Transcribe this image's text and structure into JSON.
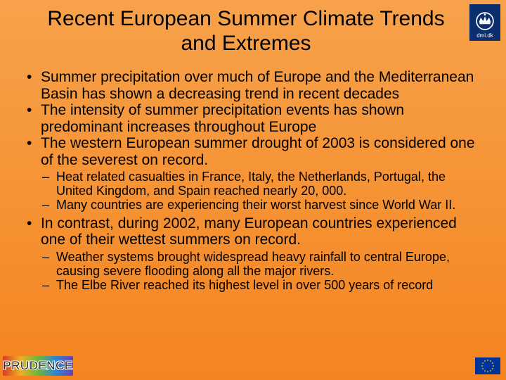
{
  "background": {
    "gradient_start": "#f7a24b",
    "gradient_end": "#f4841f",
    "direction": "to bottom"
  },
  "title": "Recent European Summer Climate Trends and Extremes",
  "title_fontsize": 30,
  "logo": {
    "box_bg": "#0b2e6f",
    "crown_color": "#ffffff",
    "label": "dmi.dk",
    "label_color": "#ffffff"
  },
  "bullets": [
    {
      "text": "Summer precipitation over much of Europe and the Mediterranean Basin has shown a decreasing trend in recent decades",
      "sub": []
    },
    {
      "text": "The intensity of summer precipitation events has shown predominant increases throughout Europe",
      "sub": []
    },
    {
      "text": "The western European summer drought of 2003 is considered one of the severest on record.",
      "sub": [
        "Heat related casualties in France, Italy, the Netherlands, Portugal, the United Kingdom, and Spain reached nearly 20, 000.",
        "Many countries are experiencing their worst harvest since World War II."
      ]
    },
    {
      "text": "In contrast, during 2002, many European countries experienced one of their wettest summers on record.",
      "sub": [
        "Weather systems brought widespread heavy rainfall to central Europe, causing severe flooding along all the major rivers.",
        "The Elbe River reached its highest level in over 500 years of record"
      ]
    }
  ],
  "body_fontsize_lvl1": 21,
  "body_fontsize_lvl2": 18,
  "prudence": {
    "text": "PRUDENCE",
    "gradient_colors": [
      "#d63c2a",
      "#f0b020",
      "#6ab83a",
      "#2b87d6",
      "#6a3fb0"
    ]
  },
  "eu_flag": {
    "bg": "#003399",
    "star_color": "#ffcc00",
    "star_count": 12
  }
}
